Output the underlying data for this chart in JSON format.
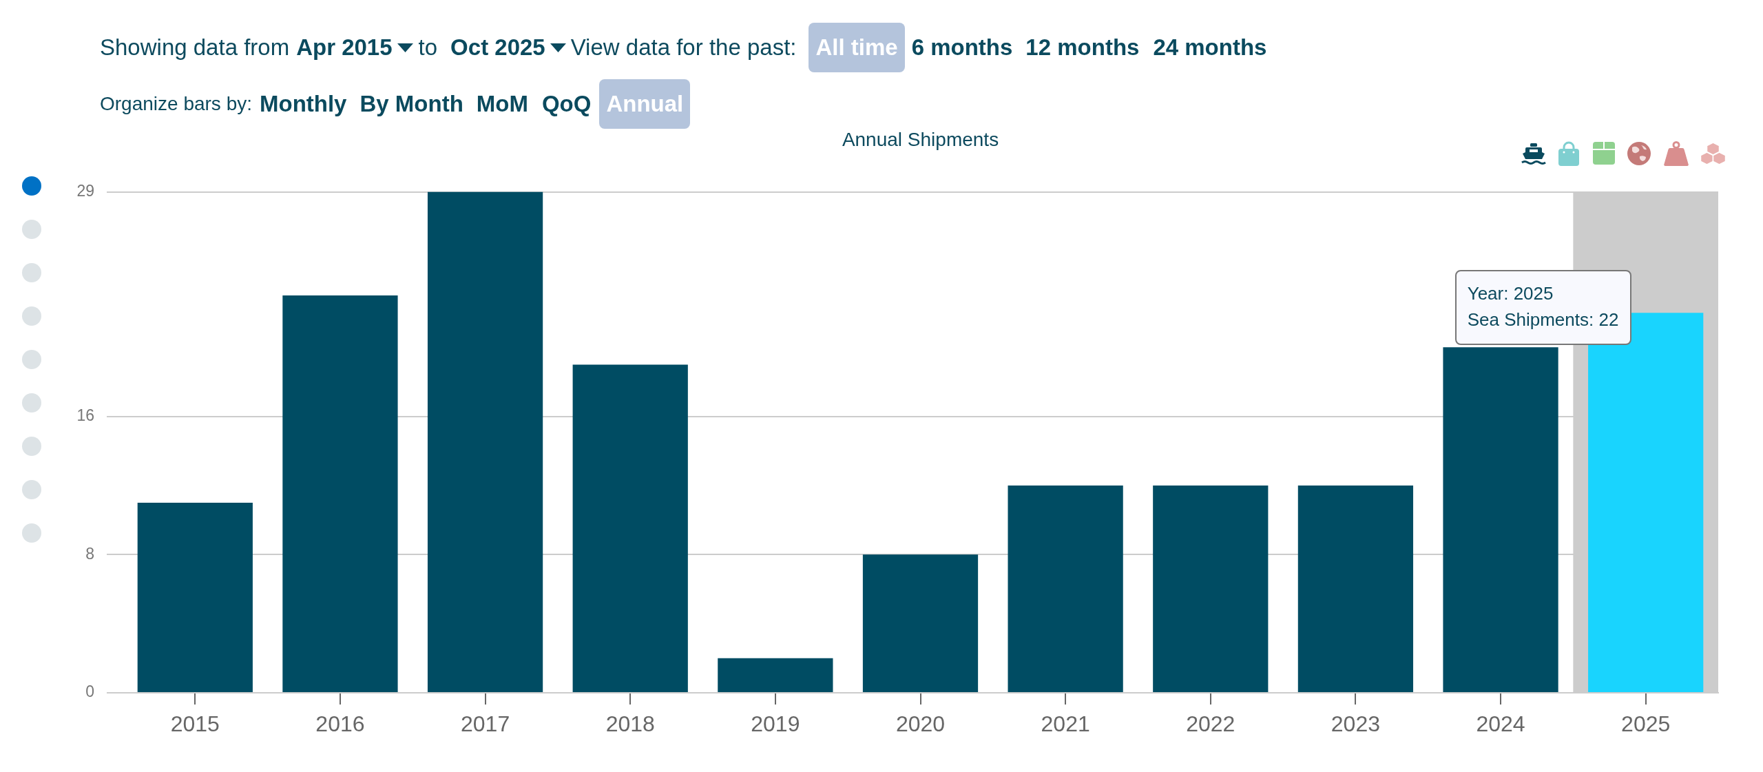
{
  "chart_data": {
    "type": "bar",
    "title": "Annual Shipments",
    "categories": [
      "2015",
      "2016",
      "2017",
      "2018",
      "2019",
      "2020",
      "2021",
      "2022",
      "2023",
      "2024",
      "2025"
    ],
    "values": [
      11,
      23,
      29,
      19,
      2,
      8,
      12,
      12,
      12,
      20,
      22
    ],
    "colors": [
      "#004c63",
      "#004c63",
      "#004c63",
      "#004c63",
      "#004c63",
      "#004c63",
      "#004c63",
      "#004c63",
      "#004c63",
      "#004c63",
      "#19d4fe"
    ],
    "ylim": [
      0,
      29
    ],
    "yticks": [
      0,
      8,
      16,
      29
    ],
    "grid": "y",
    "bands": [
      {
        "axis": "x",
        "from": "2025",
        "to": "2025",
        "color": "#cccccc"
      }
    ],
    "annotations": [
      "Showing data from",
      "Apr 2015",
      "to",
      "Oct 2025",
      "View data for the past:",
      "All time",
      "6 months",
      "12 months",
      "24 months",
      "Organize bars by:",
      "Monthly",
      "By Month",
      "MoM",
      "QoQ",
      "Annual",
      {
        "text": "Year: 2025\nSea Shipments: 22",
        "x": "2025",
        "y": 22
      }
    ]
  }
}
